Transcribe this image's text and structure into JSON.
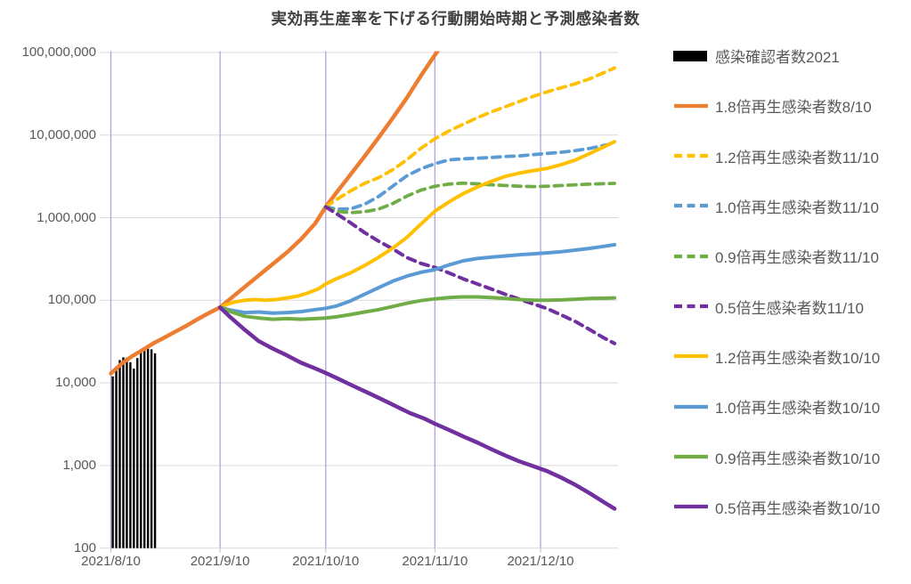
{
  "title": "実効再生産率を下げる行動開始時期と予測感染者数",
  "chart_data": {
    "type": "line+bar (log scale)",
    "y_axis": {
      "scale": "log",
      "min": 100,
      "max": 100000000,
      "tick_values": [
        100000000,
        10000000,
        1000000,
        100000,
        10000,
        1000,
        100
      ],
      "tick_labels": [
        "100,000,000",
        "10,000,000",
        "1,000,000",
        "100,000",
        "10,000",
        "1,000",
        "100"
      ],
      "gridline_color": "#D9D9D9"
    },
    "x_axis": {
      "unit": "days from 2021/8/10",
      "tick_days": [
        0,
        31,
        61,
        92,
        122
      ],
      "tick_labels": [
        "2021/8/10",
        "2021/9/10",
        "2021/10/10",
        "2021/11/10",
        "2021/12/10"
      ],
      "gridline_color": "#B9A0DC",
      "range_days": [
        0,
        144
      ]
    },
    "bars": {
      "label": "感染確認者数2021",
      "color": "#000000",
      "start_day": 0,
      "values": [
        12000,
        15800,
        18900,
        20400,
        20200,
        17800,
        14900,
        20000,
        23900,
        25200,
        25900,
        25500,
        22800
      ]
    },
    "series": [
      {
        "label": "1.8倍再生感染者数8/10",
        "color": "#ED7D31",
        "dash": false,
        "width": 4.5,
        "points": [
          [
            0,
            13000
          ],
          [
            3,
            17000
          ],
          [
            6,
            21000
          ],
          [
            9,
            25000
          ],
          [
            12,
            30000
          ],
          [
            15,
            35000
          ],
          [
            18,
            41000
          ],
          [
            21,
            48000
          ],
          [
            24,
            57000
          ],
          [
            27,
            67000
          ],
          [
            31,
            82000
          ],
          [
            34,
            105000
          ],
          [
            38,
            145000
          ],
          [
            42,
            200000
          ],
          [
            46,
            275000
          ],
          [
            50,
            380000
          ],
          [
            54,
            550000
          ],
          [
            58,
            850000
          ],
          [
            61,
            1350000
          ],
          [
            64,
            2000000
          ],
          [
            68,
            3300000
          ],
          [
            72,
            5500000
          ],
          [
            76,
            9300000
          ],
          [
            80,
            16000000
          ],
          [
            84,
            28000000
          ],
          [
            88,
            52000000
          ],
          [
            92,
            93000000
          ],
          [
            93.5,
            115000000
          ]
        ]
      },
      {
        "label": "1.2倍再生感染者数11/10",
        "color": "#FFC000",
        "dash": true,
        "width": 3.8,
        "points": [
          [
            61,
            1350000
          ],
          [
            64,
            1650000
          ],
          [
            68,
            2100000
          ],
          [
            72,
            2600000
          ],
          [
            76,
            3050000
          ],
          [
            80,
            3800000
          ],
          [
            84,
            5000000
          ],
          [
            88,
            6900000
          ],
          [
            92,
            9000000
          ],
          [
            96,
            11200000
          ],
          [
            100,
            13500000
          ],
          [
            104,
            16200000
          ],
          [
            108,
            19000000
          ],
          [
            112,
            22000000
          ],
          [
            116,
            25500000
          ],
          [
            120,
            29500000
          ],
          [
            124,
            33500000
          ],
          [
            128,
            37500000
          ],
          [
            132,
            42000000
          ],
          [
            136,
            48000000
          ],
          [
            140,
            57000000
          ],
          [
            143,
            65000000
          ]
        ]
      },
      {
        "label": "1.0倍再生感染者数11/10",
        "color": "#5B9BD5",
        "dash": true,
        "width": 3.8,
        "points": [
          [
            61,
            1350000
          ],
          [
            64,
            1270000
          ],
          [
            68,
            1280000
          ],
          [
            72,
            1450000
          ],
          [
            76,
            1800000
          ],
          [
            80,
            2400000
          ],
          [
            84,
            3200000
          ],
          [
            88,
            3900000
          ],
          [
            92,
            4500000
          ],
          [
            96,
            5000000
          ],
          [
            100,
            5150000
          ],
          [
            104,
            5250000
          ],
          [
            108,
            5350000
          ],
          [
            112,
            5500000
          ],
          [
            116,
            5600000
          ],
          [
            120,
            5800000
          ],
          [
            124,
            6000000
          ],
          [
            128,
            6200000
          ],
          [
            132,
            6500000
          ],
          [
            136,
            6900000
          ],
          [
            140,
            7500000
          ],
          [
            143,
            8000000
          ]
        ]
      },
      {
        "label": "0.9倍再生感染者数11/10",
        "color": "#70AD47",
        "dash": true,
        "width": 3.8,
        "points": [
          [
            61,
            1350000
          ],
          [
            64,
            1200000
          ],
          [
            68,
            1150000
          ],
          [
            72,
            1180000
          ],
          [
            76,
            1270000
          ],
          [
            80,
            1480000
          ],
          [
            84,
            1820000
          ],
          [
            88,
            2150000
          ],
          [
            92,
            2400000
          ],
          [
            96,
            2550000
          ],
          [
            100,
            2620000
          ],
          [
            104,
            2570000
          ],
          [
            108,
            2500000
          ],
          [
            112,
            2450000
          ],
          [
            116,
            2400000
          ],
          [
            120,
            2380000
          ],
          [
            124,
            2400000
          ],
          [
            128,
            2450000
          ],
          [
            132,
            2500000
          ],
          [
            136,
            2550000
          ],
          [
            140,
            2580000
          ],
          [
            143,
            2600000
          ]
        ]
      },
      {
        "label": "0.5倍生感染者数11/10",
        "color": "#7030A0",
        "dash": true,
        "width": 4,
        "points": [
          [
            61,
            1350000
          ],
          [
            64,
            1120000
          ],
          [
            68,
            870000
          ],
          [
            72,
            660000
          ],
          [
            76,
            520000
          ],
          [
            80,
            420000
          ],
          [
            84,
            330000
          ],
          [
            88,
            280000
          ],
          [
            92,
            250000
          ],
          [
            96,
            214000
          ],
          [
            100,
            182000
          ],
          [
            104,
            158000
          ],
          [
            108,
            137000
          ],
          [
            112,
            118000
          ],
          [
            116,
            103000
          ],
          [
            120,
            90000
          ],
          [
            124,
            79000
          ],
          [
            128,
            66000
          ],
          [
            132,
            55000
          ],
          [
            136,
            44000
          ],
          [
            140,
            35000
          ],
          [
            143,
            30000
          ]
        ]
      },
      {
        "label": "1.2倍再生感染者数10/10",
        "color": "#FFC000",
        "dash": false,
        "width": 4,
        "points": [
          [
            31,
            82000
          ],
          [
            33,
            89000
          ],
          [
            35,
            95000
          ],
          [
            38,
            100000
          ],
          [
            41,
            102000
          ],
          [
            44,
            100000
          ],
          [
            47,
            102000
          ],
          [
            50,
            107000
          ],
          [
            53,
            112000
          ],
          [
            56,
            123000
          ],
          [
            59,
            138000
          ],
          [
            61,
            158000
          ],
          [
            64,
            182000
          ],
          [
            68,
            214000
          ],
          [
            72,
            263000
          ],
          [
            76,
            331000
          ],
          [
            80,
            427000
          ],
          [
            84,
            575000
          ],
          [
            88,
            832000
          ],
          [
            92,
            1200000
          ],
          [
            96,
            1550000
          ],
          [
            100,
            1950000
          ],
          [
            104,
            2340000
          ],
          [
            108,
            2750000
          ],
          [
            112,
            3160000
          ],
          [
            116,
            3470000
          ],
          [
            120,
            3720000
          ],
          [
            124,
            3950000
          ],
          [
            128,
            4400000
          ],
          [
            132,
            5000000
          ],
          [
            136,
            6000000
          ],
          [
            140,
            7200000
          ],
          [
            143,
            8300000
          ]
        ]
      },
      {
        "label": "1.0倍再生感染者数10/10",
        "color": "#5B9BD5",
        "dash": false,
        "width": 4,
        "points": [
          [
            31,
            82000
          ],
          [
            34,
            76000
          ],
          [
            38,
            71000
          ],
          [
            42,
            72000
          ],
          [
            46,
            70000
          ],
          [
            50,
            71000
          ],
          [
            54,
            73000
          ],
          [
            58,
            77000
          ],
          [
            61,
            80000
          ],
          [
            64,
            85000
          ],
          [
            68,
            98000
          ],
          [
            72,
            118000
          ],
          [
            76,
            142000
          ],
          [
            80,
            170000
          ],
          [
            84,
            196000
          ],
          [
            88,
            218000
          ],
          [
            92,
            235000
          ],
          [
            96,
            268000
          ],
          [
            100,
            300000
          ],
          [
            104,
            320000
          ],
          [
            108,
            332000
          ],
          [
            112,
            344000
          ],
          [
            116,
            356000
          ],
          [
            120,
            365000
          ],
          [
            124,
            375000
          ],
          [
            128,
            388000
          ],
          [
            132,
            405000
          ],
          [
            136,
            425000
          ],
          [
            140,
            450000
          ],
          [
            143,
            470000
          ]
        ]
      },
      {
        "label": "0.9倍再生感染者数10/10",
        "color": "#70AD47",
        "dash": false,
        "width": 4,
        "points": [
          [
            31,
            82000
          ],
          [
            34,
            73000
          ],
          [
            38,
            64000
          ],
          [
            42,
            61000
          ],
          [
            46,
            59000
          ],
          [
            50,
            60000
          ],
          [
            54,
            59000
          ],
          [
            58,
            60000
          ],
          [
            61,
            61000
          ],
          [
            64,
            63000
          ],
          [
            68,
            67000
          ],
          [
            72,
            72000
          ],
          [
            76,
            77000
          ],
          [
            80,
            84000
          ],
          [
            84,
            92000
          ],
          [
            88,
            99000
          ],
          [
            92,
            104000
          ],
          [
            96,
            108000
          ],
          [
            100,
            110000
          ],
          [
            104,
            110000
          ],
          [
            108,
            108000
          ],
          [
            112,
            105000
          ],
          [
            116,
            102000
          ],
          [
            120,
            100000
          ],
          [
            124,
            100000
          ],
          [
            128,
            101000
          ],
          [
            132,
            103000
          ],
          [
            136,
            105000
          ],
          [
            140,
            106000
          ],
          [
            143,
            107000
          ]
        ]
      },
      {
        "label": "0.5倍再生感染者数10/10",
        "color": "#7030A0",
        "dash": false,
        "width": 4.5,
        "points": [
          [
            31,
            82000
          ],
          [
            34,
            62000
          ],
          [
            38,
            44000
          ],
          [
            42,
            32000
          ],
          [
            46,
            26000
          ],
          [
            50,
            21500
          ],
          [
            54,
            17500
          ],
          [
            58,
            15000
          ],
          [
            61,
            13200
          ],
          [
            65,
            11000
          ],
          [
            69,
            9100
          ],
          [
            73,
            7600
          ],
          [
            77,
            6300
          ],
          [
            81,
            5200
          ],
          [
            85,
            4300
          ],
          [
            89,
            3700
          ],
          [
            92,
            3200
          ],
          [
            96,
            2700
          ],
          [
            100,
            2250
          ],
          [
            104,
            1900
          ],
          [
            108,
            1580
          ],
          [
            112,
            1320
          ],
          [
            116,
            1120
          ],
          [
            120,
            980
          ],
          [
            124,
            850
          ],
          [
            128,
            710
          ],
          [
            132,
            580
          ],
          [
            136,
            460
          ],
          [
            140,
            360
          ],
          [
            143,
            300
          ]
        ]
      }
    ],
    "legend": [
      {
        "label": "感染確認者数2021",
        "color": "#000000",
        "style": "bar"
      },
      {
        "label": "1.8倍再生感染者数8/10",
        "color": "#ED7D31",
        "style": "solid"
      },
      {
        "label": "1.2倍再生感染者数11/10",
        "color": "#FFC000",
        "style": "dashed"
      },
      {
        "label": "1.0倍再生感染者数11/10",
        "color": "#5B9BD5",
        "style": "dashed"
      },
      {
        "label": "0.9倍再生感染者数11/10",
        "color": "#70AD47",
        "style": "dashed"
      },
      {
        "label": "0.5倍生感染者数11/10",
        "color": "#7030A0",
        "style": "dashed"
      },
      {
        "label": "1.2倍再生感染者数10/10",
        "color": "#FFC000",
        "style": "solid"
      },
      {
        "label": "1.0倍再生感染者数10/10",
        "color": "#5B9BD5",
        "style": "solid"
      },
      {
        "label": "0.9倍再生感染者数10/10",
        "color": "#70AD47",
        "style": "solid"
      },
      {
        "label": "0.5倍再生感染者数10/10",
        "color": "#7030A0",
        "style": "solid"
      }
    ],
    "legend_position": "right",
    "grid": true
  }
}
